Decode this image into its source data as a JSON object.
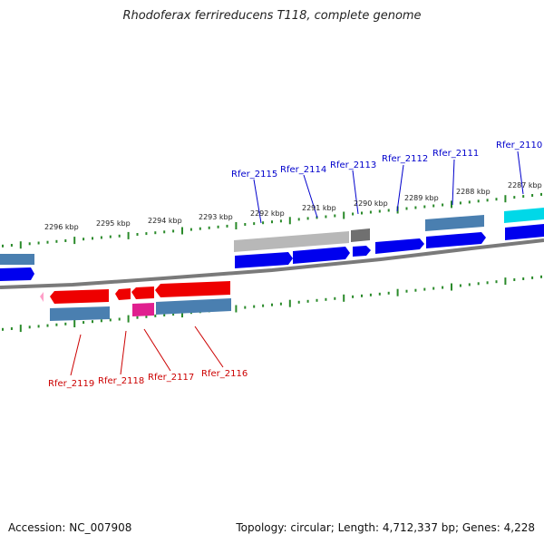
{
  "title": "Rhodoferax ferrireducens T118, complete genome",
  "footer": {
    "accession": "Accession: NC_007908",
    "topology": "Topology: circular; Length: 4,712,337 bp; Genes: 4,228"
  },
  "ticks_top": [
    "2296 kbp",
    "2295 kbp",
    "2294 kbp",
    "2293 kbp",
    "2292 kbp",
    "2291 kbp",
    "2290 kbp",
    "2289 kbp",
    "2288 kbp",
    "2287 kbp"
  ],
  "labels_top": [
    "Rfer_2115",
    "Rfer_2114",
    "Rfer_2113",
    "Rfer_2112",
    "Rfer_2111",
    "Rfer_2110"
  ],
  "labels_bottom": [
    "Rfer_2119",
    "Rfer_2118",
    "Rfer_2117",
    "Rfer_2116"
  ],
  "colors": {
    "label_top": "#0000cc",
    "label_bottom": "#cc0000",
    "gene_forward": "#0000ee",
    "gene_reverse": "#ee0000",
    "feature_steelblue": "#4a7fb0",
    "feature_gray": "#b8b8b8",
    "feature_darkgray": "#707070",
    "feature_cyan": "#00d8e8",
    "feature_magenta": "#e0208f",
    "tick": "#2a8a2a",
    "backbone": "#808080"
  }
}
